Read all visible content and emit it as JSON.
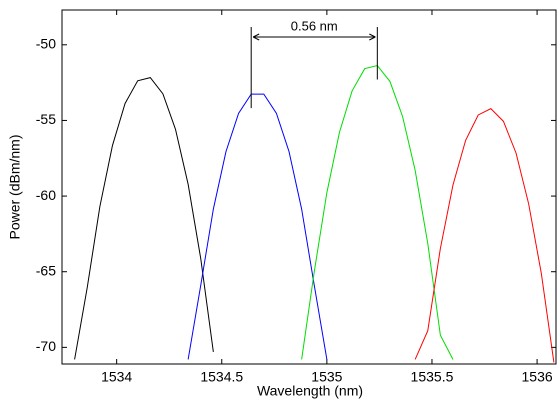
{
  "chart_data": {
    "type": "line",
    "xlabel": "Wavelength (nm)",
    "ylabel": "Power (dBm/nm)",
    "annotation": "0.56 nm",
    "xlim": [
      1533.74,
      1536.09
    ],
    "ylim": [
      -71.1,
      -47.7
    ],
    "xticks": [
      1534,
      1534.5,
      1535,
      1535.5,
      1536
    ],
    "yticks": [
      -70,
      -65,
      -60,
      -55,
      -50
    ],
    "grid": false,
    "x": [
      1533.74,
      1533.8,
      1533.86,
      1533.92,
      1533.98,
      1534.04,
      1534.1,
      1534.16,
      1534.22,
      1534.28,
      1534.34,
      1534.4,
      1534.46,
      1534.52,
      1534.58,
      1534.64,
      1534.7,
      1534.76,
      1534.82,
      1534.88,
      1534.94,
      1535.0,
      1535.06,
      1535.12,
      1535.18,
      1535.24,
      1535.3,
      1535.36,
      1535.42,
      1535.48,
      1535.54,
      1535.6,
      1535.66,
      1535.72,
      1535.78,
      1535.84,
      1535.9,
      1535.96,
      1536.02,
      1536.08
    ],
    "series": [
      {
        "color": "#000000",
        "values": [
          null,
          -70.8,
          -66.05,
          -60.7,
          -56.66,
          -53.88,
          -52.38,
          -52.17,
          -53.24,
          -55.59,
          -59.22,
          -64.13,
          -70.3,
          null,
          null,
          null,
          null,
          null,
          null,
          null,
          null,
          null,
          null,
          null,
          null,
          null,
          null,
          null,
          null,
          null,
          null,
          null,
          null,
          null,
          null,
          null,
          null,
          null,
          null,
          null
        ]
      },
      {
        "color": "#0000ff",
        "values": [
          null,
          null,
          null,
          null,
          null,
          null,
          null,
          null,
          null,
          null,
          -70.8,
          -65.9,
          -60.86,
          -57.06,
          -54.53,
          -53.26,
          -53.26,
          -54.53,
          -57.06,
          -60.86,
          -65.9,
          -70.8,
          null,
          null,
          null,
          null,
          null,
          null,
          null,
          null,
          null,
          null,
          null,
          null,
          null,
          null,
          null,
          null,
          null,
          null
        ]
      },
      {
        "color": "#00dd00",
        "values": [
          null,
          null,
          null,
          null,
          null,
          null,
          null,
          null,
          null,
          null,
          null,
          null,
          null,
          null,
          null,
          null,
          null,
          null,
          null,
          -70.8,
          -65.0,
          -59.77,
          -55.78,
          -53.05,
          -51.58,
          -51.37,
          -52.42,
          -54.73,
          -58.3,
          -63.13,
          -69.2,
          -70.8,
          null,
          null,
          null,
          null,
          null,
          null,
          null,
          null
        ]
      },
      {
        "color": "#ff0000",
        "values": [
          null,
          null,
          null,
          null,
          null,
          null,
          null,
          null,
          null,
          null,
          null,
          null,
          null,
          null,
          null,
          null,
          null,
          null,
          null,
          null,
          null,
          null,
          null,
          null,
          null,
          null,
          null,
          null,
          -70.8,
          -68.9,
          -63.46,
          -59.26,
          -56.32,
          -54.64,
          -54.22,
          -55.06,
          -57.16,
          -60.52,
          -65.1,
          -71.0
        ]
      }
    ]
  }
}
